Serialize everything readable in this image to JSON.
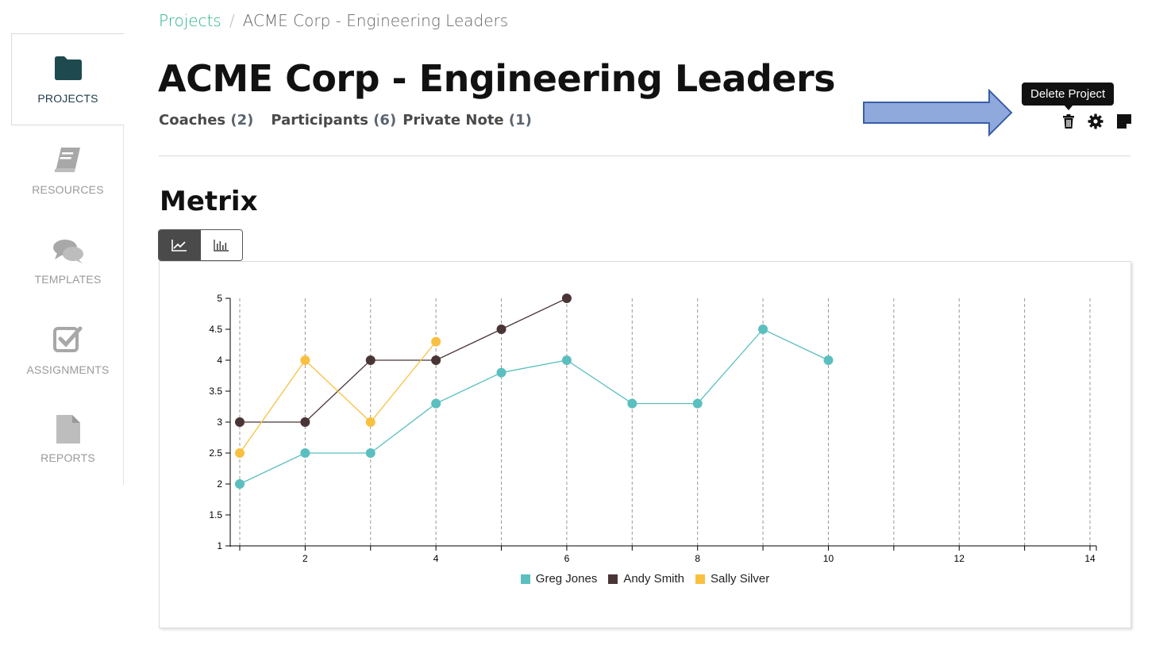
{
  "sidebar": {
    "items": [
      {
        "label": "PROJECTS",
        "icon": "folder-icon",
        "active": true
      },
      {
        "label": "RESOURCES",
        "icon": "book-icon",
        "active": false
      },
      {
        "label": "TEMPLATES",
        "icon": "chat-bubbles-icon",
        "active": false
      },
      {
        "label": "ASSIGNMENTS",
        "icon": "checkbox-icon",
        "active": false
      },
      {
        "label": "REPORTS",
        "icon": "document-icon",
        "active": false
      }
    ]
  },
  "breadcrumb": {
    "parent": "Projects",
    "separator": "/",
    "current": "ACME Corp - Engineering Leaders"
  },
  "page": {
    "title": "ACME Corp - Engineering Leaders",
    "subnav": {
      "coaches_label": "Coaches",
      "coaches_count": "(2)",
      "participants_label": "Participants",
      "participants_count": "(6)",
      "note_label": "Private Note",
      "note_count": "(1)"
    }
  },
  "actions": {
    "tooltip": "Delete Project",
    "icons": [
      "trash-icon",
      "gear-icon",
      "note-icon"
    ]
  },
  "metrics": {
    "title": "Metrix",
    "views": [
      "line-chart-icon",
      "bar-chart-icon"
    ],
    "active_view": "line"
  },
  "colors": {
    "accent": "#2bb38c",
    "greg": "#5bbfbf",
    "andy": "#4a3536",
    "sally": "#f9c040",
    "arrow": "#8fa9dc"
  },
  "chart_data": {
    "type": "line",
    "xlim": [
      1,
      14
    ],
    "ylim": [
      1,
      5
    ],
    "x_ticks": [
      2,
      4,
      6,
      8,
      10,
      12,
      14
    ],
    "y_ticks": [
      "1",
      "1.5",
      "2",
      "2.5",
      "3",
      "3.5",
      "4",
      "4.5",
      "5"
    ],
    "grid": "vertical dashed",
    "legend": "bottom-center",
    "series": [
      {
        "name": "Greg Jones",
        "color": "#5bbfbf",
        "x": [
          1,
          2,
          3,
          4,
          5,
          6,
          7,
          8,
          9,
          10
        ],
        "y": [
          2,
          2.5,
          2.5,
          3.3,
          3.8,
          4,
          3.3,
          3.3,
          4.5,
          4
        ]
      },
      {
        "name": "Andy Smith",
        "color": "#4a3536",
        "x": [
          1,
          2,
          3,
          4,
          5,
          6
        ],
        "y": [
          3,
          3,
          4,
          4,
          4.5,
          5
        ]
      },
      {
        "name": "Sally Silver",
        "color": "#f9c040",
        "x": [
          1,
          2,
          3,
          4
        ],
        "y": [
          2.5,
          4,
          3,
          4.3
        ]
      }
    ]
  }
}
